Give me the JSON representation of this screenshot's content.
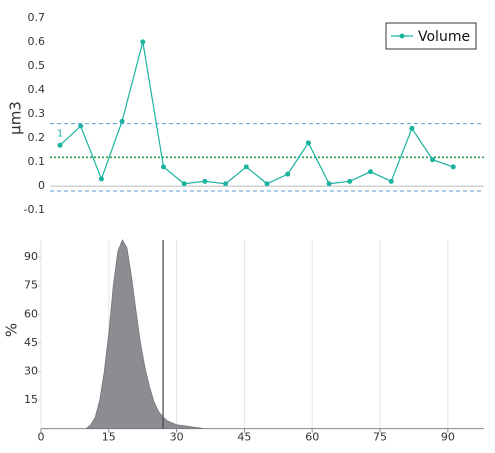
{
  "chart_data": [
    {
      "type": "line",
      "ylabel": "µm3",
      "annotation": "1",
      "series": [
        {
          "name": "Volume",
          "color": "#1ab3a0",
          "values": [
            0.17,
            0.25,
            0.03,
            0.27,
            0.6,
            0.08,
            0.01,
            0.02,
            0.01,
            0.08,
            0.01,
            0.05,
            0.18,
            0.01,
            0.02,
            0.06,
            0.02,
            0.24,
            0.11,
            0.08
          ]
        }
      ],
      "ylim": [
        -0.12,
        0.72
      ],
      "yticks": [
        -0.1,
        0,
        0.1,
        0.2,
        0.3,
        0.4,
        0.5,
        0.6,
        0.7
      ],
      "reference_lines": [
        {
          "value": 0.26,
          "color": "#5b9bd5",
          "style": "dashed"
        },
        {
          "value": 0.12,
          "color": "#2e9e4a",
          "style": "dotted"
        },
        {
          "value": -0.02,
          "color": "#5b9bd5",
          "style": "dashed"
        }
      ],
      "legend": "top-right"
    },
    {
      "type": "area",
      "ylabel": "%",
      "color": "#8e8c92",
      "x": [
        10,
        11,
        12,
        13,
        14,
        15,
        16,
        17,
        18,
        19,
        20,
        21,
        22,
        23,
        24,
        25,
        26,
        27,
        28,
        30,
        33,
        36
      ],
      "values": [
        0,
        2,
        6,
        15,
        30,
        50,
        75,
        93,
        99,
        95,
        80,
        62,
        45,
        32,
        22,
        14,
        9,
        6,
        4,
        2,
        1,
        0
      ],
      "xlim": [
        0,
        98
      ],
      "xticks": [
        0,
        15,
        30,
        45,
        60,
        75,
        90
      ],
      "ylim": [
        0,
        99
      ],
      "yticks": [
        15,
        30,
        45,
        60,
        75,
        90
      ],
      "marker_line": 27,
      "grid": true
    }
  ]
}
